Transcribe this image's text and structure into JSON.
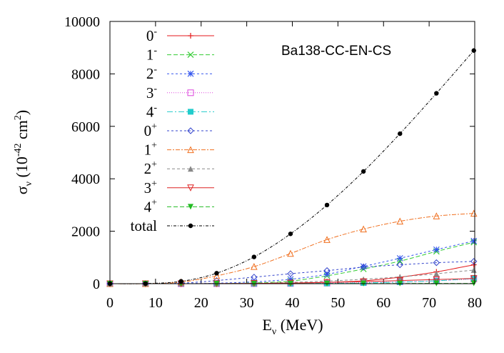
{
  "chart_data": {
    "type": "line",
    "title": "",
    "annotation": "Ba138-CC-EN-CS",
    "xlabel": {
      "main": "E",
      "sub": "ν",
      "unit": "(MeV)"
    },
    "ylabel": {
      "main": "σ",
      "sub": "ν",
      "unit_open": "(10",
      "exp": "-42",
      "unit_mid": " cm",
      "exp2": "2",
      "unit_close": ")"
    },
    "xlim": [
      0,
      80
    ],
    "ylim": [
      0,
      10000
    ],
    "xticks": [
      0,
      10,
      20,
      30,
      40,
      50,
      60,
      70,
      80
    ],
    "yticks": [
      0,
      2000,
      4000,
      6000,
      8000,
      10000
    ],
    "x": [
      0,
      7.8,
      15.6,
      23.4,
      31.6,
      39.6,
      47.6,
      55.6,
      63.6,
      71.6,
      79.8
    ],
    "legend_position": "top-left",
    "series": [
      {
        "name": "0",
        "sup": "-",
        "color": "#e41a1c",
        "dash": "none",
        "marker": "plus",
        "values": [
          0,
          0,
          0,
          2,
          8,
          20,
          50,
          110,
          250,
          450,
          720
        ]
      },
      {
        "name": "1",
        "sup": "-",
        "color": "#33cc33",
        "dash": "6,3",
        "marker": "x",
        "values": [
          0,
          0,
          0,
          5,
          30,
          100,
          300,
          560,
          860,
          1230,
          1580
        ]
      },
      {
        "name": "2",
        "sup": "-",
        "color": "#3355ee",
        "dash": "3,3",
        "marker": "star",
        "values": [
          0,
          0,
          5,
          20,
          70,
          170,
          360,
          660,
          970,
          1300,
          1630
        ]
      },
      {
        "name": "3",
        "sup": "-",
        "color": "#dd44dd",
        "dash": "1,2",
        "marker": "square",
        "values": [
          0,
          0,
          0,
          1,
          3,
          8,
          20,
          40,
          70,
          110,
          180
        ]
      },
      {
        "name": "4",
        "sup": "-",
        "color": "#22cccc",
        "dash": "8,3,2,3",
        "marker": "filled-square",
        "values": [
          0,
          0,
          0,
          0,
          2,
          5,
          12,
          30,
          60,
          110,
          200
        ]
      },
      {
        "name": "0",
        "sup": "+",
        "color": "#3344cc",
        "dash": "3,3",
        "marker": "diamond",
        "values": [
          0,
          0,
          20,
          120,
          250,
          380,
          500,
          630,
          720,
          800,
          850
        ]
      },
      {
        "name": "1",
        "sup": "+",
        "color": "#f07020",
        "dash": "6,2,2,2",
        "marker": "triangle",
        "values": [
          0,
          0,
          60,
          300,
          650,
          1150,
          1680,
          2080,
          2380,
          2580,
          2680
        ]
      },
      {
        "name": "2",
        "sup": "+",
        "color": "#888888",
        "dash": "4,3",
        "marker": "filled-triangle",
        "values": [
          0,
          0,
          0,
          5,
          20,
          50,
          100,
          170,
          260,
          380,
          520
        ]
      },
      {
        "name": "3",
        "sup": "+",
        "color": "#dd2222",
        "dash": "none",
        "marker": "down-triangle",
        "values": [
          0,
          0,
          0,
          2,
          10,
          25,
          50,
          80,
          120,
          160,
          200
        ]
      },
      {
        "name": "4",
        "sup": "+",
        "color": "#22bb22",
        "dash": "6,3",
        "marker": "filled-down-triangle",
        "values": [
          0,
          0,
          0,
          0,
          1,
          2,
          4,
          6,
          8,
          10,
          12
        ]
      },
      {
        "name": "total",
        "sup": "",
        "color": "#000000",
        "dash": "4,2,1,2",
        "marker": "filled-circle",
        "values": [
          0,
          5,
          90,
          400,
          1020,
          1900,
          3000,
          4280,
          5720,
          7260,
          8890
        ]
      }
    ]
  }
}
